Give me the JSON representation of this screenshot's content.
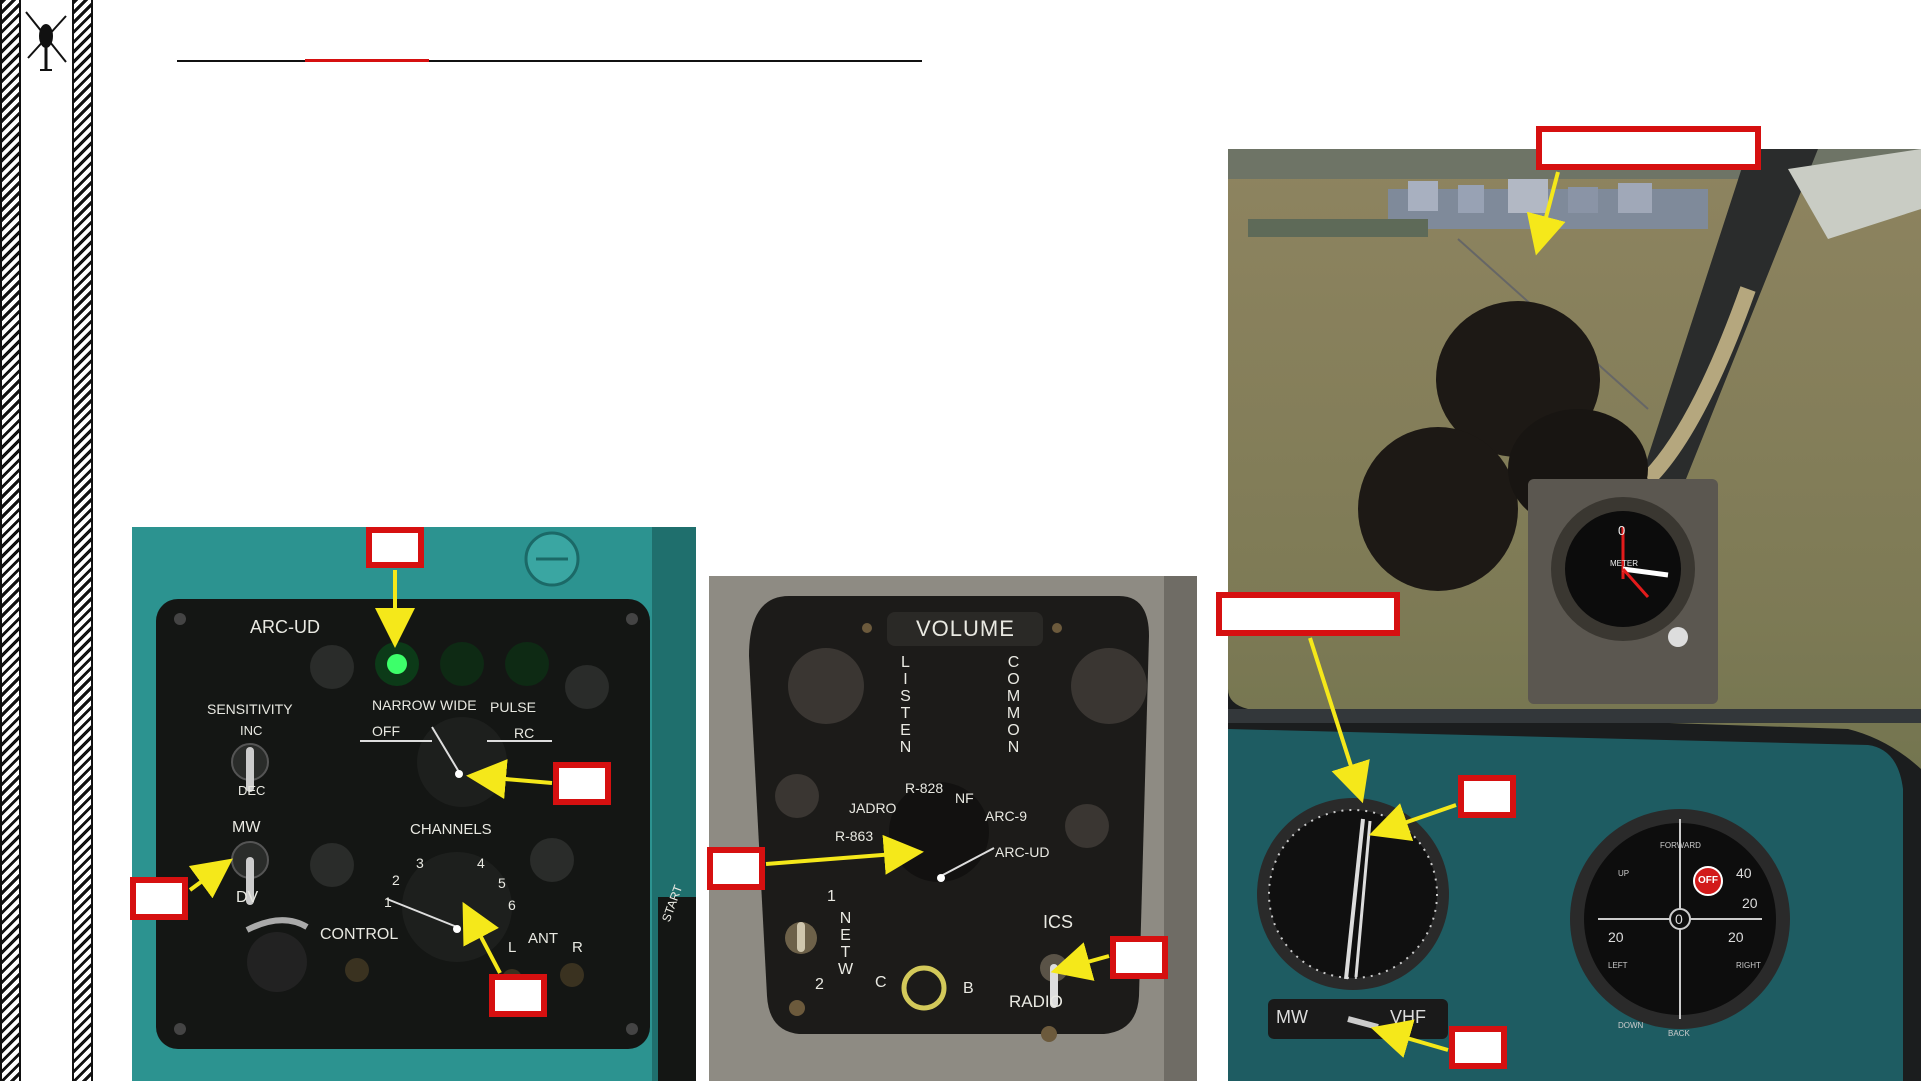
{
  "arc_panel": {
    "title": "ARC-UD",
    "sensitivity": "SENSITIVITY",
    "inc": "INC",
    "dec": "DEC",
    "mw": "MW",
    "dv": "DV",
    "narrow": "NARROW",
    "wide": "WIDE",
    "pulse": "PULSE",
    "off": "OFF",
    "rc": "RC",
    "channels": "CHANNELS",
    "ch1": "1",
    "ch2": "2",
    "ch3": "3",
    "ch4": "4",
    "ch5": "5",
    "ch6": "6",
    "control": "CONTROL",
    "ant": "ANT",
    "ant_l": "L",
    "ant_r": "R",
    "start": "START"
  },
  "audio_panel": {
    "volume": "VOLUME",
    "listen": "LISTEN",
    "common": "COMMON",
    "jadro": "JADRO",
    "r828": "R-828",
    "nf": "NF",
    "arc9": "ARC-9",
    "r863": "R-863",
    "arcud": "ARC-UD",
    "netw": "NETW",
    "netw_1": "1",
    "netw_2": "2",
    "c": "C",
    "b": "B",
    "ics": "ICS",
    "radio": "RADIO"
  },
  "cockpit": {
    "meter_label": "METER",
    "mw": "MW",
    "vhf": "VHF",
    "off": "OFF",
    "forward": "FORWARD",
    "back": "BACK",
    "left": "LEFT",
    "right": "RIGHT",
    "down": "DOWN",
    "up": "UP",
    "n40": "40",
    "n20": "20",
    "n0": "0"
  },
  "colors": {
    "accent": "#d61010",
    "arrow": "#f5e81a",
    "panel_teal": "#2a8f8c",
    "led_green": "#3dff6a"
  }
}
